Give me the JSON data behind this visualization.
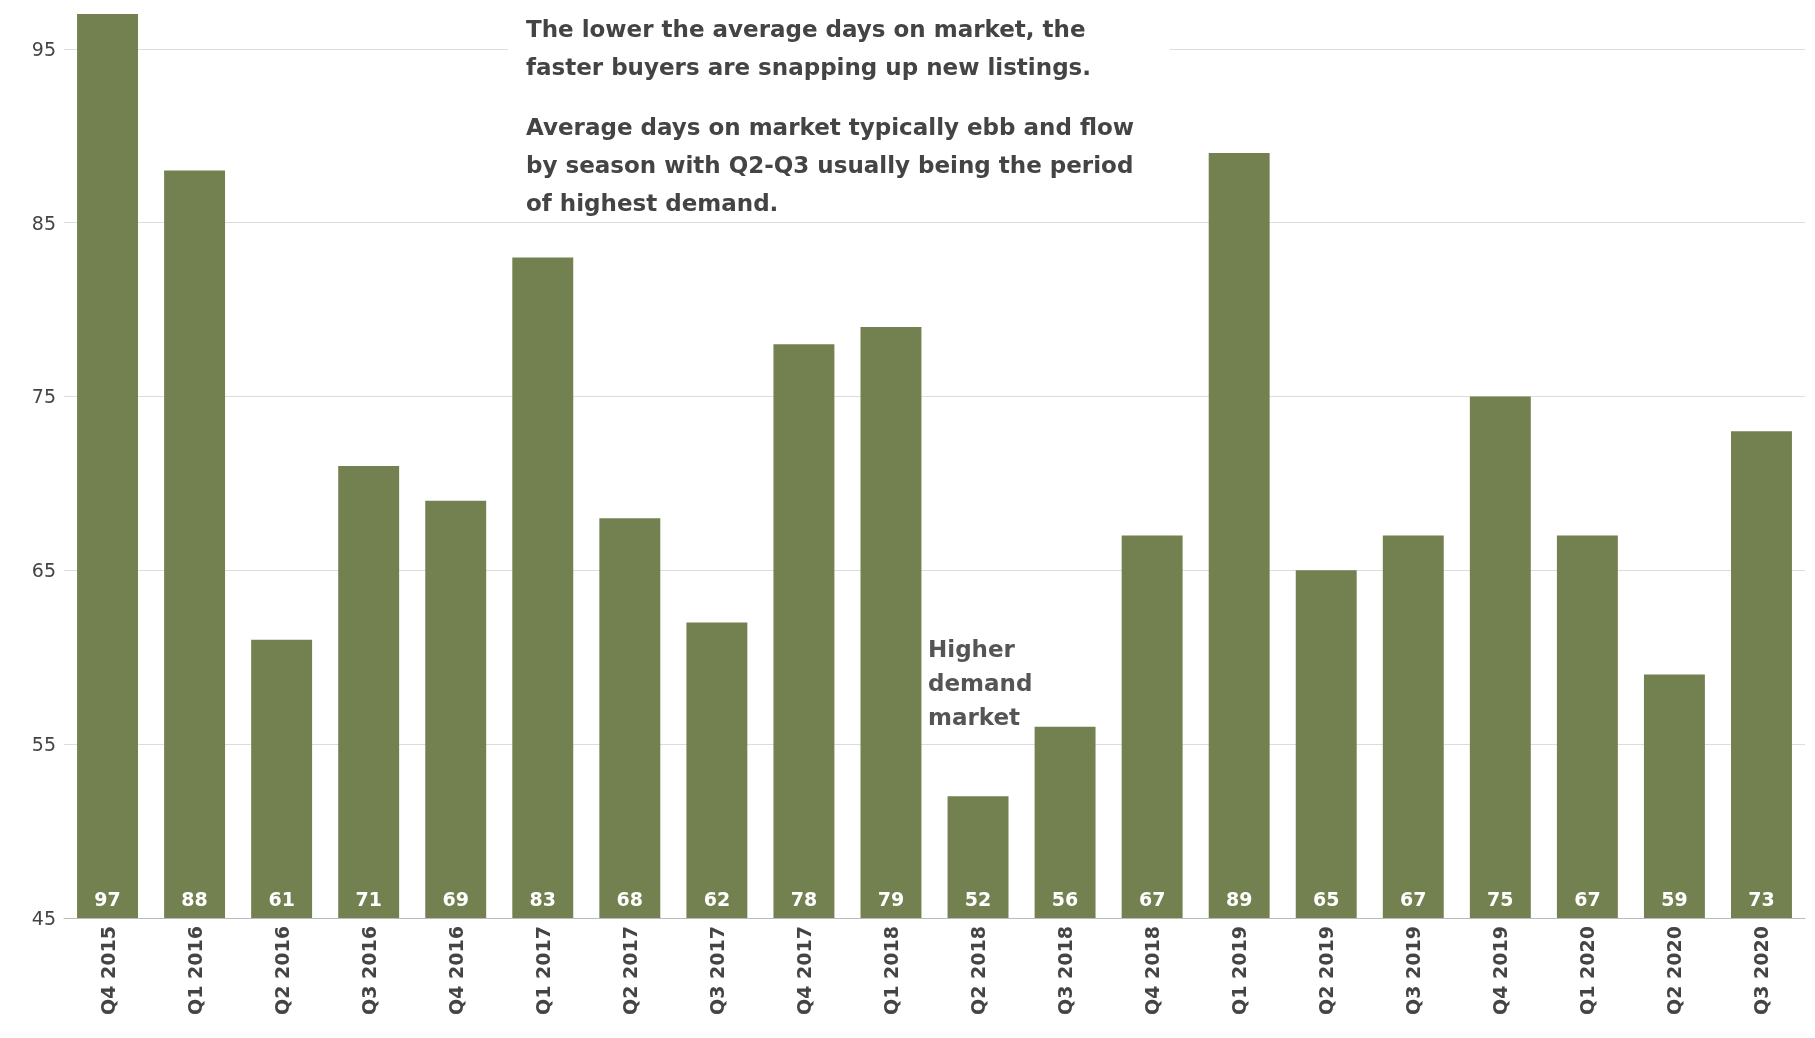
{
  "chart_data": {
    "type": "bar",
    "categories": [
      "Q4 2015",
      "Q1 2016",
      "Q2 2016",
      "Q3 2016",
      "Q4 2016",
      "Q1 2017",
      "Q2 2017",
      "Q3 2017",
      "Q4 2017",
      "Q1 2018",
      "Q2 2018",
      "Q3 2018",
      "Q4 2018",
      "Q1 2019",
      "Q2 2019",
      "Q3 2019",
      "Q4 2019",
      "Q1 2020",
      "Q2 2020",
      "Q3 2020"
    ],
    "values": [
      97,
      88,
      61,
      71,
      69,
      83,
      68,
      62,
      78,
      79,
      52,
      56,
      67,
      89,
      65,
      67,
      75,
      67,
      59,
      73
    ],
    "color": "#738050",
    "ylim": [
      45,
      97
    ],
    "yticks": [
      45,
      55,
      65,
      75,
      85,
      95
    ],
    "grid": "y",
    "data_labels": true,
    "annotations": [
      "The lower the average days on market, the faster buyers are snapping up new listings.",
      "Average days on market typically ebb and flow by season with Q2-Q3 usually being the period of highest demand.",
      "Higher demand market"
    ]
  }
}
